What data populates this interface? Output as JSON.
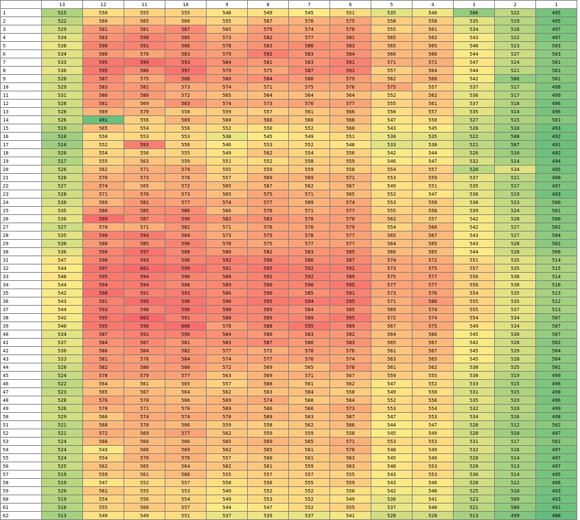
{
  "chart_data": {
    "type": "heatmap",
    "columns": [
      "13",
      "12",
      "11",
      "10",
      "9",
      "8",
      "7",
      "6",
      "5",
      "4",
      "3",
      "2",
      "1"
    ],
    "rows": [
      "1",
      "2",
      "3",
      "4",
      "5",
      "6",
      "7",
      "8",
      "9",
      "10",
      "11",
      "12",
      "13",
      "14",
      "15",
      "16",
      "17",
      "18",
      "19",
      "20",
      "21",
      "22",
      "23",
      "24",
      "25",
      "26",
      "27",
      "28",
      "29",
      "30",
      "31",
      "32",
      "33",
      "34",
      "35",
      "36",
      "37",
      "38",
      "39",
      "40",
      "41",
      "42",
      "43",
      "44",
      "45",
      "46",
      "47",
      "48",
      "49",
      "50",
      "51",
      "52",
      "53",
      "54",
      "55",
      "56",
      "57",
      "58",
      "59",
      "60",
      "61",
      "62"
    ],
    "values": [
      [
        515,
        550,
        555,
        555,
        548,
        549,
        545,
        551,
        535,
        540,
        506,
        522,
        495
      ],
      [
        522,
        560,
        565,
        560,
        555,
        567,
        570,
        575,
        558,
        558,
        535,
        519,
        495
      ],
      [
        529,
        581,
        581,
        587,
        565,
        579,
        574,
        578,
        555,
        561,
        534,
        518,
        497
      ],
      [
        534,
        583,
        590,
        585,
        573,
        582,
        577,
        581,
        565,
        562,
        543,
        522,
        497
      ],
      [
        538,
        590,
        591,
        586,
        578,
        583,
        586,
        583,
        565,
        565,
        540,
        523,
        503
      ],
      [
        534,
        580,
        576,
        583,
        579,
        592,
        583,
        584,
        566,
        566,
        544,
        527,
        503
      ],
      [
        533,
        595,
        599,
        593,
        584,
        581,
        583,
        591,
        571,
        571,
        547,
        524,
        501
      ],
      [
        536,
        595,
        586,
        597,
        579,
        575,
        587,
        591,
        557,
        564,
        544,
        521,
        501
      ],
      [
        528,
        587,
        575,
        588,
        580,
        584,
        580,
        579,
        562,
        568,
        542,
        506,
        501
      ],
      [
        529,
        583,
        581,
        573,
        574,
        571,
        575,
        576,
        575,
        557,
        537,
        517,
        498
      ],
      [
        531,
        580,
        580,
        572,
        565,
        564,
        564,
        564,
        552,
        562,
        536,
        517,
        499
      ],
      [
        528,
        581,
        569,
        583,
        574,
        573,
        576,
        577,
        555,
        561,
        537,
        518,
        496
      ],
      [
        528,
        569,
        570,
        558,
        559,
        557,
        561,
        566,
        550,
        557,
        535,
        514,
        496
      ],
      [
        526,
        491,
        556,
        569,
        560,
        566,
        560,
        566,
        547,
        550,
        527,
        515,
        501
      ],
      [
        519,
        565,
        554,
        556,
        552,
        550,
        552,
        560,
        543,
        545,
        528,
        510,
        493
      ],
      [
        510,
        550,
        553,
        553,
        538,
        545,
        549,
        551,
        538,
        535,
        522,
        508,
        492
      ],
      [
        510,
        552,
        593,
        556,
        546,
        553,
        552,
        548,
        533,
        538,
        521,
        507,
        491
      ],
      [
        520,
        554,
        556,
        555,
        549,
        562,
        554,
        556,
        542,
        544,
        526,
        510,
        492
      ],
      [
        517,
        555,
        563,
        559,
        551,
        552,
        558,
        559,
        546,
        547,
        532,
        514,
        494
      ],
      [
        526,
        562,
        571,
        574,
        555,
        559,
        559,
        558,
        554,
        557,
        520,
        534,
        495
      ],
      [
        528,
        570,
        573,
        570,
        557,
        569,
        569,
        571,
        553,
        559,
        537,
        521,
        498
      ],
      [
        527,
        574,
        565,
        572,
        565,
        567,
        562,
        567,
        549,
        551,
        535,
        517,
        497
      ],
      [
        528,
        571,
        576,
        573,
        565,
        575,
        571,
        565,
        552,
        547,
        536,
        519,
        493
      ],
      [
        530,
        569,
        581,
        577,
        574,
        577,
        569,
        574,
        553,
        558,
        538,
        523,
        500
      ],
      [
        535,
        580,
        585,
        586,
        566,
        576,
        571,
        577,
        555,
        558,
        539,
        524,
        501
      ],
      [
        536,
        599,
        587,
        590,
        582,
        583,
        578,
        578,
        562,
        557,
        542,
        528,
        500
      ],
      [
        527,
        570,
        571,
        582,
        571,
        576,
        576,
        579,
        554,
        566,
        542,
        527,
        502
      ],
      [
        535,
        590,
        594,
        584,
        573,
        579,
        578,
        577,
        565,
        567,
        543,
        527,
        504
      ],
      [
        530,
        580,
        585,
        590,
        578,
        575,
        577,
        577,
        564,
        565,
        543,
        528,
        502
      ],
      [
        536,
        590,
        597,
        588,
        580,
        582,
        583,
        585,
        566,
        565,
        544,
        528,
        508
      ],
      [
        547,
        590,
        593,
        590,
        592,
        590,
        586,
        587,
        574,
        572,
        551,
        535,
        514
      ],
      [
        544,
        597,
        601,
        599,
        591,
        595,
        592,
        592,
        573,
        575,
        557,
        535,
        515
      ],
      [
        548,
        595,
        594,
        590,
        588,
        591,
        592,
        589,
        575,
        577,
        556,
        538,
        514
      ],
      [
        544,
        594,
        594,
        588,
        589,
        590,
        590,
        595,
        577,
        577,
        556,
        538,
        510
      ],
      [
        542,
        598,
        591,
        593,
        586,
        590,
        585,
        591,
        573,
        576,
        554,
        535,
        513
      ],
      [
        543,
        591,
        599,
        596,
        590,
        595,
        594,
        595,
        571,
        580,
        555,
        535,
        512
      ],
      [
        544,
        593,
        590,
        596,
        590,
        589,
        584,
        585,
        569,
        574,
        555,
        537,
        513
      ],
      [
        542,
        595,
        602,
        591,
        588,
        589,
        589,
        595,
        572,
        574,
        554,
        534,
        507
      ],
      [
        540,
        595,
        596,
        600,
        578,
        588,
        595,
        589,
        567,
        575,
        549,
        534,
        507
      ],
      [
        534,
        587,
        591,
        590,
        584,
        580,
        583,
        582,
        564,
        566,
        545,
        530,
        507
      ],
      [
        537,
        584,
        587,
        581,
        583,
        587,
        580,
        583,
        565,
        567,
        542,
        528,
        502
      ],
      [
        536,
        580,
        584,
        582,
        577,
        572,
        578,
        576,
        561,
        567,
        545,
        529,
        504
      ],
      [
        533,
        581,
        578,
        584,
        574,
        577,
        576,
        574,
        563,
        565,
        545,
        528,
        504
      ],
      [
        528,
        582,
        580,
        580,
        572,
        569,
        565,
        578,
        561,
        562,
        538,
        525,
        501
      ],
      [
        524,
        578,
        579,
        577,
        563,
        569,
        571,
        567,
        559,
        555,
        538,
        519,
        499
      ],
      [
        522,
        564,
        561,
        565,
        557,
        568,
        561,
        562,
        547,
        552,
        533,
        515,
        498
      ],
      [
        523,
        565,
        567,
        564,
        562,
        563,
        564,
        558,
        549,
        550,
        531,
        515,
        498
      ],
      [
        528,
        576,
        570,
        566,
        569,
        574,
        560,
        564,
        552,
        556,
        535,
        519,
        496
      ],
      [
        526,
        570,
        571,
        570,
        569,
        566,
        566,
        573,
        553,
        554,
        532,
        519,
        499
      ],
      [
        529,
        560,
        574,
        574,
        570,
        569,
        563,
        567,
        547,
        553,
        534,
        516,
        498
      ],
      [
        521,
        568,
        570,
        566,
        559,
        558,
        562,
        566,
        544,
        547,
        528,
        512,
        502
      ],
      [
        521,
        572,
        569,
        577,
        562,
        559,
        559,
        558,
        545,
        549,
        528,
        510,
        497
      ],
      [
        524,
        566,
        566,
        566,
        565,
        569,
        565,
        571,
        553,
        553,
        531,
        517,
        501
      ],
      [
        524,
        543,
        566,
        569,
        562,
        565,
        561,
        570,
        548,
        549,
        532,
        516,
        497
      ],
      [
        524,
        554,
        570,
        570,
        557,
        560,
        561,
        563,
        545,
        549,
        528,
        514,
        497
      ],
      [
        525,
        562,
        565,
        564,
        562,
        561,
        559,
        563,
        548,
        553,
        528,
        513,
        497
      ],
      [
        519,
        559,
        561,
        566,
        555,
        557,
        557,
        555,
        543,
        553,
        530,
        514,
        495
      ],
      [
        519,
        547,
        552,
        557,
        550,
        556,
        555,
        559,
        543,
        546,
        528,
        512,
        496
      ],
      [
        520,
        561,
        555,
        553,
        549,
        552,
        552,
        550,
        542,
        540,
        525,
        510,
        493
      ],
      [
        519,
        554,
        556,
        554,
        549,
        553,
        552,
        549,
        536,
        541,
        523,
        509,
        493
      ],
      [
        518,
        555,
        560,
        557,
        544,
        547,
        552,
        555,
        537,
        540,
        521,
        506,
        491
      ],
      [
        513,
        549,
        549,
        551,
        537,
        539,
        537,
        541,
        528,
        528,
        513,
        499,
        488
      ]
    ],
    "color_scale": {
      "low": "#63be7b",
      "mid": "#ffeb84",
      "high": "#f8696b",
      "min": 488,
      "max": 602
    }
  }
}
